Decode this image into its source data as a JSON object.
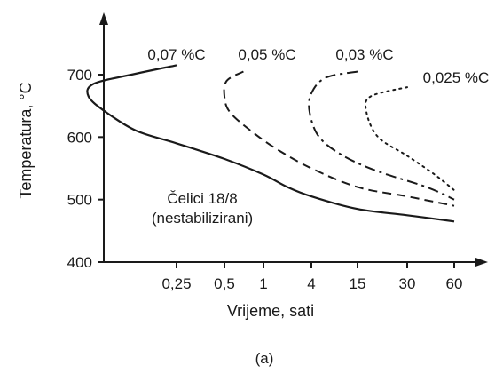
{
  "chart_data": {
    "type": "line",
    "title": "",
    "xlabel": "Vrijeme, sati",
    "ylabel": "Temperatura, °C",
    "xscale": "log",
    "x_ticks": [
      "0,25",
      "0,5",
      "1",
      "4",
      "15",
      "30",
      "60"
    ],
    "y_ticks": [
      "400",
      "500",
      "600",
      "700"
    ],
    "ylim": [
      400,
      750
    ],
    "grid": false,
    "legend": "none",
    "annotation": [
      "Čelici 18/8",
      "(nestabilizirani)"
    ],
    "caption": "(a)",
    "series": [
      {
        "name": "0,07 %C",
        "style": "solid",
        "points": [
          [
            0.25,
            715
          ],
          [
            0.13,
            700
          ],
          [
            0.075,
            685
          ],
          [
            0.07,
            665
          ],
          [
            0.09,
            640
          ],
          [
            0.14,
            610
          ],
          [
            0.25,
            590
          ],
          [
            0.5,
            565
          ],
          [
            1,
            540
          ],
          [
            2,
            520
          ],
          [
            4,
            505
          ],
          [
            15,
            485
          ],
          [
            30,
            475
          ],
          [
            60,
            465
          ]
        ]
      },
      {
        "name": "0,05 %C",
        "style": "dashed",
        "points": [
          [
            0.7,
            705
          ],
          [
            0.52,
            690
          ],
          [
            0.5,
            665
          ],
          [
            0.55,
            640
          ],
          [
            0.8,
            610
          ],
          [
            1.5,
            580
          ],
          [
            4,
            550
          ],
          [
            15,
            520
          ],
          [
            30,
            505
          ],
          [
            60,
            490
          ]
        ]
      },
      {
        "name": "0,03 %C",
        "style": "dashdot",
        "points": [
          [
            15,
            705
          ],
          [
            6,
            695
          ],
          [
            4,
            670
          ],
          [
            3.8,
            640
          ],
          [
            5,
            600
          ],
          [
            10,
            570
          ],
          [
            20,
            545
          ],
          [
            40,
            520
          ],
          [
            60,
            500
          ]
        ]
      },
      {
        "name": "0,025 %C",
        "style": "dotted",
        "points": [
          [
            30,
            680
          ],
          [
            18,
            665
          ],
          [
            17,
            640
          ],
          [
            20,
            600
          ],
          [
            30,
            570
          ],
          [
            45,
            540
          ],
          [
            60,
            515
          ]
        ]
      }
    ]
  }
}
